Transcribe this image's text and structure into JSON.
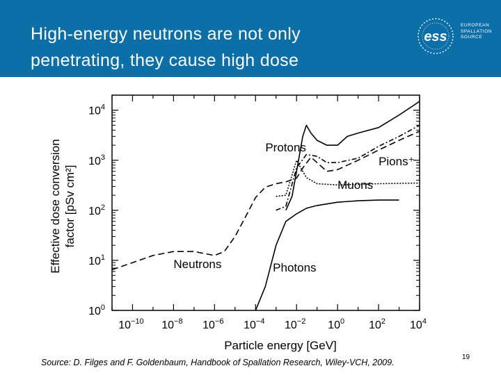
{
  "slide": {
    "title_line1": "High-energy neutrons are not only",
    "title_line2": "penetrating, they cause high dose",
    "source": "Source: D. Filges and F. Goldenbaum, Handbook of Spallation Research, Wiley-VCH, 2009.",
    "page_number": "19",
    "header_color": "#0d6fa8"
  },
  "logo": {
    "mark": "ess",
    "line1": "EUROPEAN",
    "line2": "SPALLATION",
    "line3": "SOURCE"
  },
  "chart_data": {
    "type": "line",
    "xscale": "log",
    "yscale": "log",
    "xlabel": "Particle energy [GeV]",
    "ylabel_line1": "Effective dose conversion",
    "ylabel_line2": "factor [pSv cm²]",
    "xlim": [
      1e-11,
      10000.0
    ],
    "ylim": [
      1,
      20000.0
    ],
    "x_ticks": [
      {
        "value": 1e-10,
        "base": "10",
        "exp": "−10"
      },
      {
        "value": 1e-08,
        "base": "10",
        "exp": "−8"
      },
      {
        "value": 1e-06,
        "base": "10",
        "exp": "−6"
      },
      {
        "value": 0.0001,
        "base": "10",
        "exp": "−4"
      },
      {
        "value": 0.01,
        "base": "10",
        "exp": "−2"
      },
      {
        "value": 1,
        "base": "10",
        "exp": "0"
      },
      {
        "value": 100.0,
        "base": "10",
        "exp": "2"
      },
      {
        "value": 10000.0,
        "base": "10",
        "exp": "4"
      }
    ],
    "y_ticks": [
      {
        "value": 1,
        "base": "10",
        "exp": "0"
      },
      {
        "value": 10,
        "base": "10",
        "exp": "1"
      },
      {
        "value": 100,
        "base": "10",
        "exp": "2"
      },
      {
        "value": 1000,
        "base": "10",
        "exp": "3"
      },
      {
        "value": 10000,
        "base": "10",
        "exp": "4"
      }
    ],
    "series": [
      {
        "name": "Neutrons",
        "dash": "dashed",
        "label_at": [
          1e-08,
          7
        ],
        "points": [
          [
            1e-11,
            6.5
          ],
          [
            1e-10,
            9
          ],
          [
            1e-09,
            12.5
          ],
          [
            1e-08,
            15
          ],
          [
            1e-07,
            15
          ],
          [
            1e-06,
            12.5
          ],
          [
            3e-06,
            15
          ],
          [
            1e-05,
            30
          ],
          [
            3e-05,
            70
          ],
          [
            0.0001,
            180
          ],
          [
            0.0003,
            290
          ],
          [
            0.001,
            340
          ],
          [
            0.003,
            370
          ],
          [
            0.01,
            440
          ],
          [
            0.02,
            700
          ],
          [
            0.05,
            1150
          ],
          [
            0.1,
            900
          ],
          [
            0.3,
            600
          ],
          [
            1,
            650
          ],
          [
            10,
            1000
          ],
          [
            100,
            1600
          ],
          [
            1000.0,
            2500
          ],
          [
            10000.0,
            3800
          ]
        ]
      },
      {
        "name": "Protons",
        "dash": "solid",
        "label_at": [
          0.0003,
          1500
        ],
        "points": [
          [
            0.003,
            100
          ],
          [
            0.006,
            190
          ],
          [
            0.01,
            600
          ],
          [
            0.02,
            3000
          ],
          [
            0.03,
            5000
          ],
          [
            0.05,
            3500
          ],
          [
            0.1,
            2500
          ],
          [
            0.3,
            2000
          ],
          [
            1,
            2000
          ],
          [
            3,
            3000
          ],
          [
            10,
            3500
          ],
          [
            100,
            4500
          ],
          [
            1000.0,
            8000
          ],
          [
            10000.0,
            15000
          ]
        ]
      },
      {
        "name": "Pions⁺",
        "dash": "dashdot",
        "label_at": [
          100,
          800
        ],
        "points": [
          [
            0.001,
            100
          ],
          [
            0.003,
            120
          ],
          [
            0.01,
            700
          ],
          [
            0.03,
            1300
          ],
          [
            0.1,
            1200
          ],
          [
            0.3,
            900
          ],
          [
            1,
            900
          ],
          [
            10,
            1100
          ],
          [
            100,
            1900
          ],
          [
            1000.0,
            3000
          ],
          [
            10000.0,
            5000
          ]
        ]
      },
      {
        "name": "Muons",
        "dash": "dotted",
        "label_at": [
          1,
          270
        ],
        "points": [
          [
            0.001,
            190
          ],
          [
            0.003,
            200
          ],
          [
            0.01,
            1000
          ],
          [
            0.03,
            450
          ],
          [
            0.1,
            340
          ],
          [
            1,
            320
          ],
          [
            10,
            330
          ],
          [
            100,
            340
          ],
          [
            10000.0,
            350
          ]
        ]
      },
      {
        "name": "Photons",
        "dash": "solid",
        "label_at": [
          0.0007,
          6
        ],
        "points": [
          [
            0.0001,
            1
          ],
          [
            0.0003,
            3
          ],
          [
            0.001,
            20
          ],
          [
            0.003,
            60
          ],
          [
            0.01,
            85
          ],
          [
            0.03,
            110
          ],
          [
            0.1,
            125
          ],
          [
            1,
            145
          ],
          [
            10,
            155
          ],
          [
            100,
            160
          ],
          [
            1000.0,
            160
          ]
        ]
      }
    ]
  }
}
